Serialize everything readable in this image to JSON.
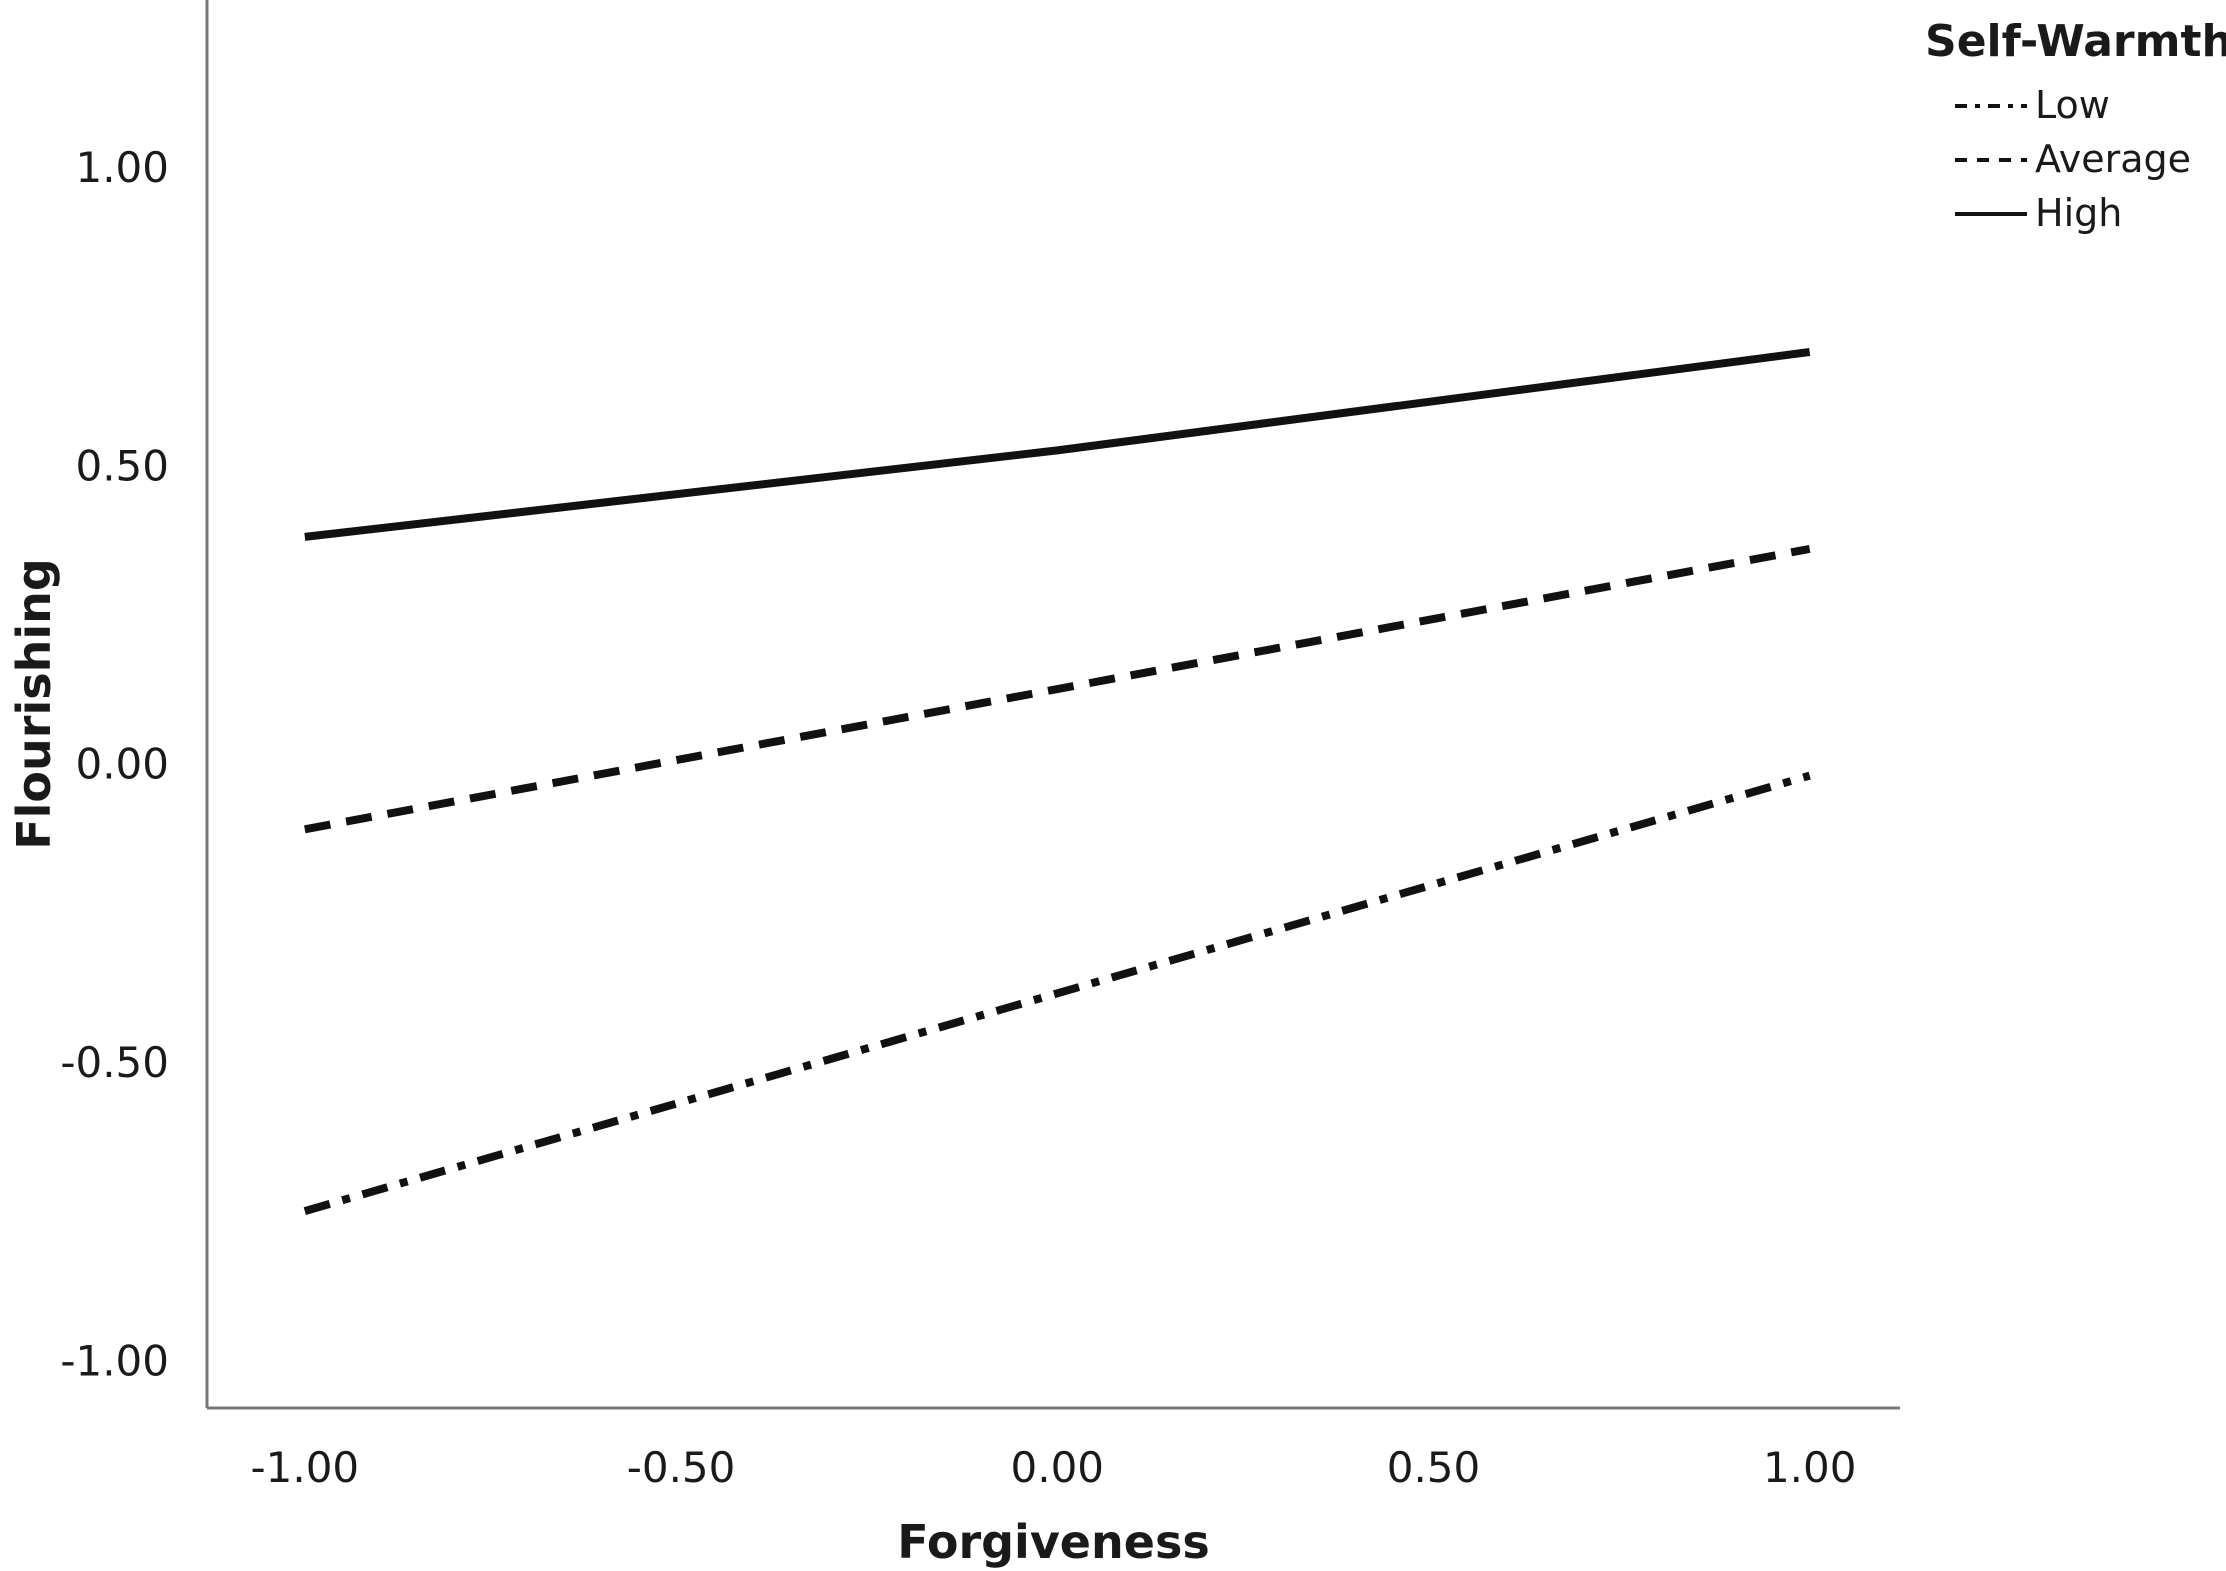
{
  "chart_data": {
    "type": "line",
    "xlabel": "Forgiveness",
    "ylabel": "Flourishing",
    "xlim": [
      -1.13,
      1.12
    ],
    "ylim": [
      -1.08,
      1.28
    ],
    "x_ticks": [
      "-1.00",
      "-0.50",
      "0.00",
      "0.50",
      "1.00"
    ],
    "y_ticks": [
      "-1.00",
      "-0.50",
      "0.00",
      "0.50",
      "1.00"
    ],
    "grid": false,
    "legend": {
      "title": "Self-Warmth",
      "position": "top-right"
    },
    "series": [
      {
        "name": "Low",
        "style": "dash-dot",
        "color": "#111111",
        "x": [
          -1.0,
          1.0
        ],
        "y": [
          -0.75,
          -0.02
        ]
      },
      {
        "name": "Average",
        "style": "dashed",
        "color": "#111111",
        "x": [
          -1.0,
          1.0
        ],
        "y": [
          -0.11,
          0.36
        ]
      },
      {
        "name": "High",
        "style": "solid",
        "color": "#111111",
        "x": [
          -1.0,
          0.0,
          1.0
        ],
        "y": [
          0.38,
          0.525,
          0.69
        ]
      }
    ]
  }
}
